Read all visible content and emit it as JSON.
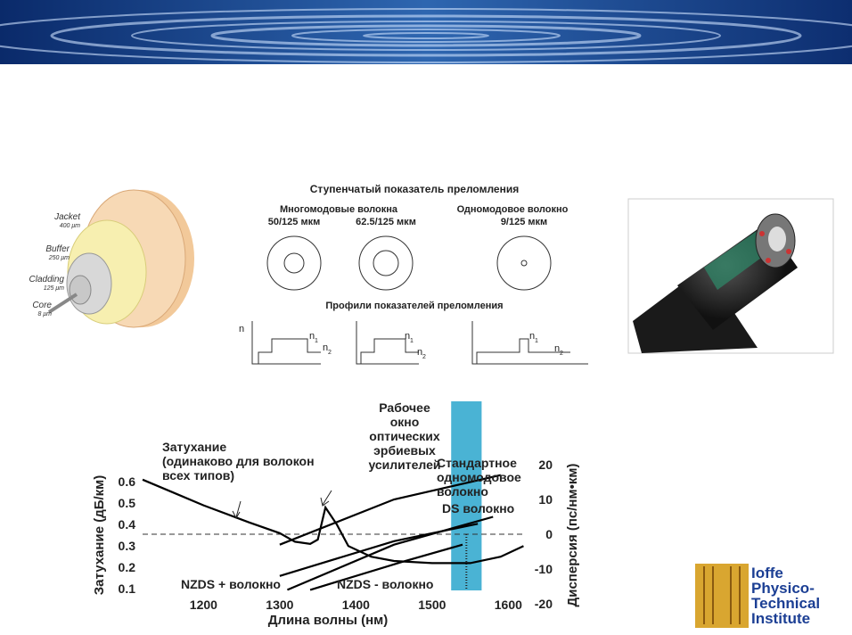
{
  "fiber_diagram": {
    "labels": [
      {
        "name": "Jacket",
        "size": "400 μm"
      },
      {
        "name": "Buffer",
        "size": "250 μm"
      },
      {
        "name": "Cladding",
        "size": "125 μm"
      },
      {
        "name": "Core",
        "size": "8 μm"
      }
    ]
  },
  "index_profiles": {
    "title": "Ступенчатый показатель преломления",
    "multimode": "Многомодовые волокна",
    "singlemode": "Одномодовое волокно",
    "sizes": [
      "50/125 мкм",
      "62.5/125 мкм",
      "9/125 мкм"
    ],
    "profiles_title": "Профили показателей преломления",
    "n": "n",
    "n1": "1",
    "n2": "2"
  },
  "chart": {
    "type": "line",
    "x_label": "Длина волны (нм)",
    "y_label": "Затухание (дБ/км)",
    "y2_label": "Дисперсия (пс/нм•км)",
    "xlim": [
      1120,
      1623
    ],
    "xticks": [
      1200,
      1300,
      1400,
      1500,
      1600
    ],
    "ylim": [
      0.03,
      0.68
    ],
    "yticks": [
      0.1,
      0.2,
      0.3,
      0.4,
      0.5,
      0.6
    ],
    "y2lim": [
      -20,
      20
    ],
    "y2ticks": [
      -20,
      -10,
      0,
      10,
      20
    ],
    "window": [
      1525,
      1565
    ],
    "series": [
      {
        "axis": "y",
        "color": "#000000",
        "x": [
          1120,
          1160,
          1200,
          1260,
          1300,
          1320,
          1340,
          1350,
          1360,
          1375,
          1390,
          1420,
          1450,
          1500,
          1550,
          1590,
          1620
        ],
        "values": [
          0.61,
          0.55,
          0.49,
          0.41,
          0.36,
          0.32,
          0.31,
          0.33,
          0.48,
          0.4,
          0.3,
          0.25,
          0.23,
          0.22,
          0.22,
          0.25,
          0.3
        ]
      },
      {
        "axis": "y2",
        "color": "#000000",
        "x": [
          1300,
          1450,
          1590
        ],
        "values": [
          -3,
          10,
          17
        ]
      },
      {
        "axis": "y2",
        "color": "#000000",
        "x": [
          1310,
          1450,
          1580
        ],
        "values": [
          -16,
          -3,
          5
        ]
      },
      {
        "axis": "y2",
        "color": "#000000",
        "x": [
          1300,
          1450,
          1560
        ],
        "values": [
          -12,
          -2,
          3
        ]
      },
      {
        "axis": "y2",
        "color": "#000000",
        "x": [
          1340,
          1460,
          1540
        ],
        "values": [
          -16,
          -8,
          -3
        ]
      }
    ],
    "annotations": [
      {
        "lines": [
          "Затухание",
          "(одинаково для волокон",
          "всех типов)"
        ]
      },
      {
        "lines": [
          "Рабочее",
          "окно",
          "оптических",
          "эрбиевых",
          "усилителей"
        ]
      },
      {
        "lines": [
          "Стандартное",
          "одномодовое",
          "волокно"
        ]
      },
      {
        "lines": [
          "DS волокно"
        ]
      },
      {
        "lines": [
          "NZDS + волокно"
        ]
      },
      {
        "lines": [
          "NZDS - волокно"
        ]
      }
    ]
  },
  "logo": {
    "lines": [
      "Ioffe",
      "Physico-",
      "Technical",
      "Institute"
    ]
  }
}
